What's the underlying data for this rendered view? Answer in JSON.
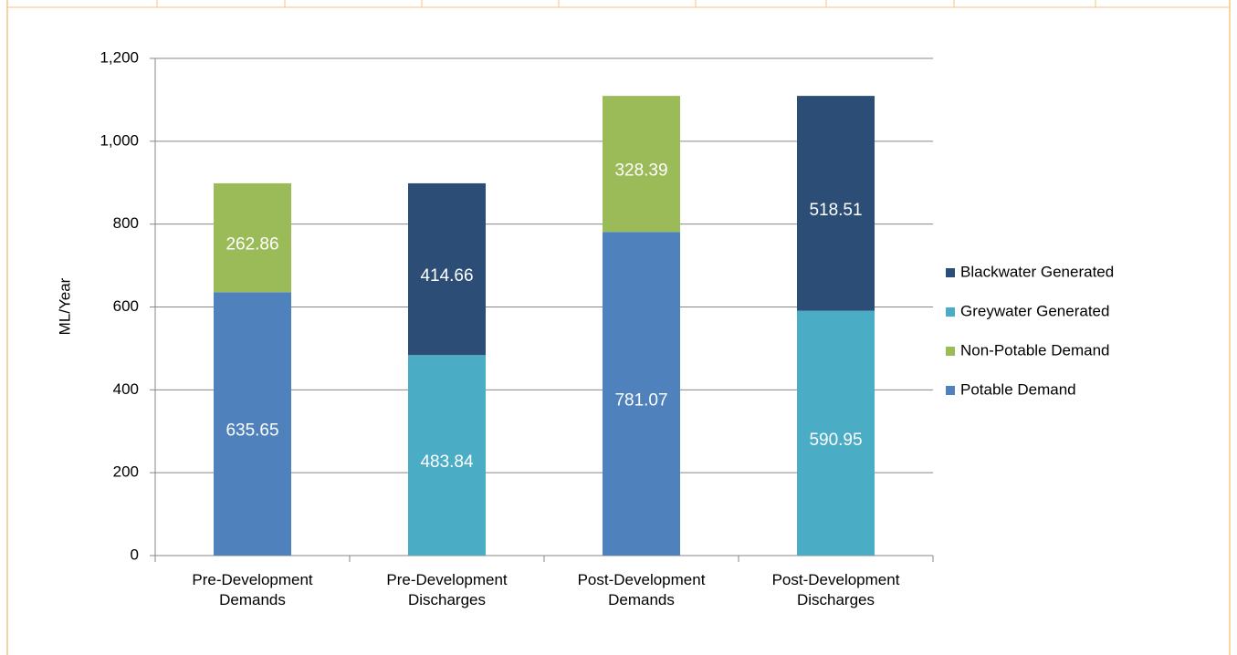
{
  "chart_data": {
    "type": "stacked_bar",
    "categories": [
      "Pre-Development Demands",
      "Pre-Development Discharges",
      "Post-Development Demands",
      "Post-Development Discharges"
    ],
    "series": [
      {
        "name": "Potable Demand",
        "color": "#4f81bd",
        "values": [
          635.65,
          null,
          781.07,
          null
        ]
      },
      {
        "name": "Non-Potable Demand",
        "color": "#9bbb59",
        "values": [
          262.86,
          null,
          328.39,
          null
        ]
      },
      {
        "name": "Greywater Generated",
        "color": "#4bacc6",
        "values": [
          null,
          483.84,
          null,
          590.95
        ]
      },
      {
        "name": "Blackwater Generated",
        "color": "#2c4d75",
        "values": [
          null,
          414.66,
          null,
          518.51
        ]
      }
    ],
    "y_axis_label": "ML/Year",
    "ylim": [
      0,
      1200
    ],
    "yticks": [
      0,
      200,
      400,
      600,
      800,
      {
        "value": 1000,
        "label": "1,000"
      },
      {
        "value": 1200,
        "label": "1,200"
      }
    ],
    "grid": true,
    "legend": "right",
    "data_labels": true
  }
}
